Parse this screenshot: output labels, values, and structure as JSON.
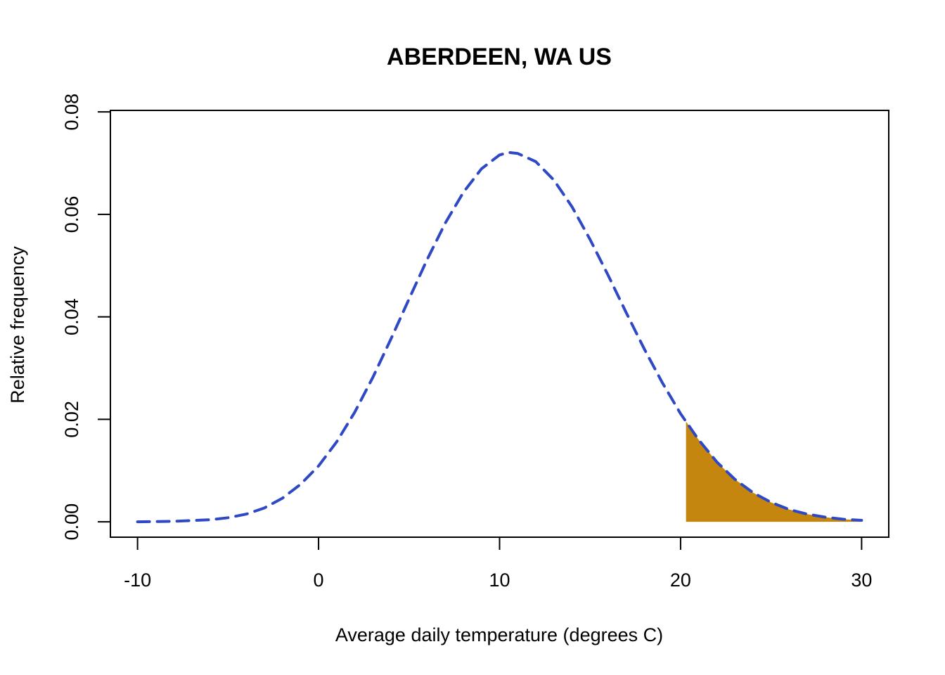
{
  "chart_data": {
    "type": "area",
    "title": "ABERDEEN, WA US",
    "xlabel": "Average daily temperature (degrees C)",
    "ylabel": "Relative frequency",
    "xlim": [
      -11.5,
      31.5
    ],
    "ylim": [
      -0.003,
      0.0803
    ],
    "x_ticks": [
      -10,
      0,
      10,
      20,
      30
    ],
    "x_tick_labels": [
      "-10",
      "0",
      "10",
      "20",
      "30"
    ],
    "y_ticks": [
      0.0,
      0.02,
      0.04,
      0.06,
      0.08
    ],
    "y_tick_labels": [
      "0.00",
      "0.02",
      "0.04",
      "0.06",
      "0.08"
    ],
    "grid": false,
    "legend": "none",
    "series": [
      {
        "style": "dashed",
        "color": "#2f49c4",
        "x": [
          -10,
          -8,
          -6,
          -5,
          -4,
          -3,
          -2,
          -1,
          0,
          1,
          2,
          3,
          4,
          5,
          6,
          7,
          8,
          9,
          10,
          10.5,
          11,
          12,
          13,
          14,
          15,
          16,
          17,
          18,
          19,
          20,
          21,
          22,
          23,
          24,
          25,
          26,
          27,
          28,
          29,
          30
        ],
        "y": [
          0.0,
          0.0001,
          0.0004,
          0.0008,
          0.0015,
          0.0027,
          0.0046,
          0.0073,
          0.0109,
          0.0156,
          0.0214,
          0.0282,
          0.0357,
          0.0435,
          0.0512,
          0.0583,
          0.0643,
          0.0689,
          0.0716,
          0.0721,
          0.0719,
          0.0703,
          0.0667,
          0.0615,
          0.0551,
          0.0481,
          0.0408,
          0.0337,
          0.0271,
          0.0211,
          0.016,
          0.0117,
          0.0083,
          0.0057,
          0.0038,
          0.0024,
          0.0015,
          0.0009,
          0.0005,
          0.0003
        ]
      }
    ],
    "shaded_region": {
      "color": "#c4860e",
      "x_from": 20.3,
      "x_to": 30
    }
  }
}
